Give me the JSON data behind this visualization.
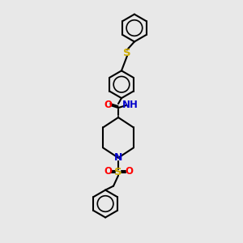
{
  "bg_color": "#e8e8e8",
  "line_color": "#000000",
  "N_color": "#0000cc",
  "O_color": "#ff0000",
  "S_color": "#ccaa00",
  "line_width": 1.5,
  "font_size": 8.5,
  "xlim": [
    0,
    10
  ],
  "ylim": [
    0,
    15
  ]
}
